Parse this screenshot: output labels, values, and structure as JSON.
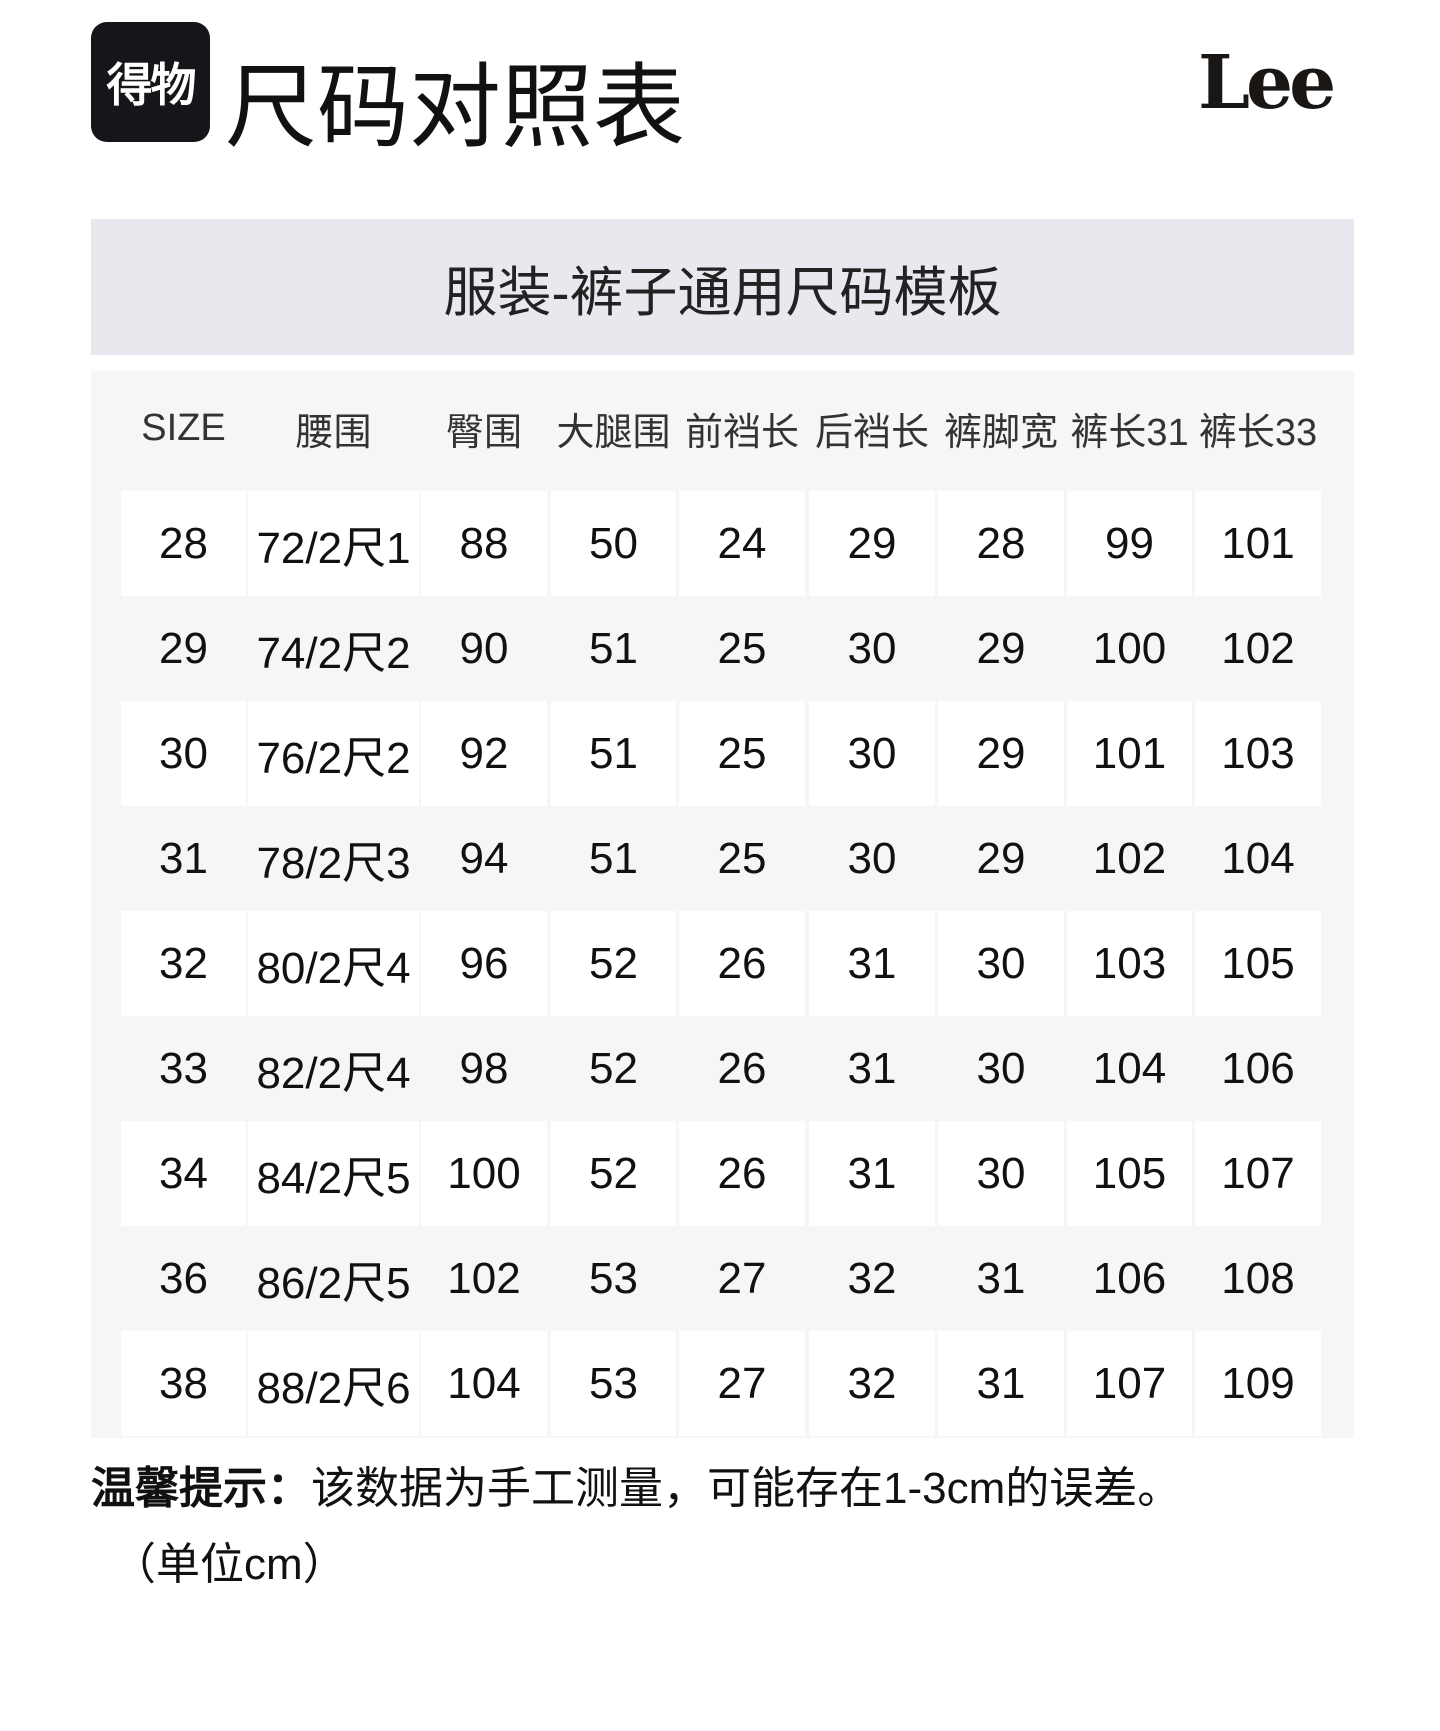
{
  "header": {
    "brand_badge": "得物",
    "title": "尺码对照表",
    "brand_logo": "Lee"
  },
  "banner": {
    "title": "服装-裤子通用尺码模板"
  },
  "table": {
    "columns": [
      "SIZE",
      "腰围",
      "臀围",
      "大腿围",
      "前裆长",
      "后裆长",
      "裤脚宽",
      "裤长31",
      "裤长33"
    ],
    "rows": [
      [
        "28",
        "72/2尺1",
        "88",
        "50",
        "24",
        "29",
        "28",
        "99",
        "101"
      ],
      [
        "29",
        "74/2尺2",
        "90",
        "51",
        "25",
        "30",
        "29",
        "100",
        "102"
      ],
      [
        "30",
        "76/2尺2",
        "92",
        "51",
        "25",
        "30",
        "29",
        "101",
        "103"
      ],
      [
        "31",
        "78/2尺3",
        "94",
        "51",
        "25",
        "30",
        "29",
        "102",
        "104"
      ],
      [
        "32",
        "80/2尺4",
        "96",
        "52",
        "26",
        "31",
        "30",
        "103",
        "105"
      ],
      [
        "33",
        "82/2尺4",
        "98",
        "52",
        "26",
        "31",
        "30",
        "104",
        "106"
      ],
      [
        "34",
        "84/2尺5",
        "100",
        "52",
        "26",
        "31",
        "30",
        "105",
        "107"
      ],
      [
        "36",
        "86/2尺5",
        "102",
        "53",
        "27",
        "32",
        "31",
        "106",
        "108"
      ],
      [
        "38",
        "88/2尺6",
        "104",
        "53",
        "27",
        "32",
        "31",
        "107",
        "109"
      ]
    ]
  },
  "note": {
    "label": "温馨提示：",
    "text": "该数据为手工测量，可能存在1-3cm的误差。",
    "unit": "（单位cm）"
  },
  "colors": {
    "banner_bg": "#e8e8ee",
    "panel_bg": "#f6f6f9",
    "cell_bg": "#ffffff",
    "badge_bg": "#16161a"
  }
}
